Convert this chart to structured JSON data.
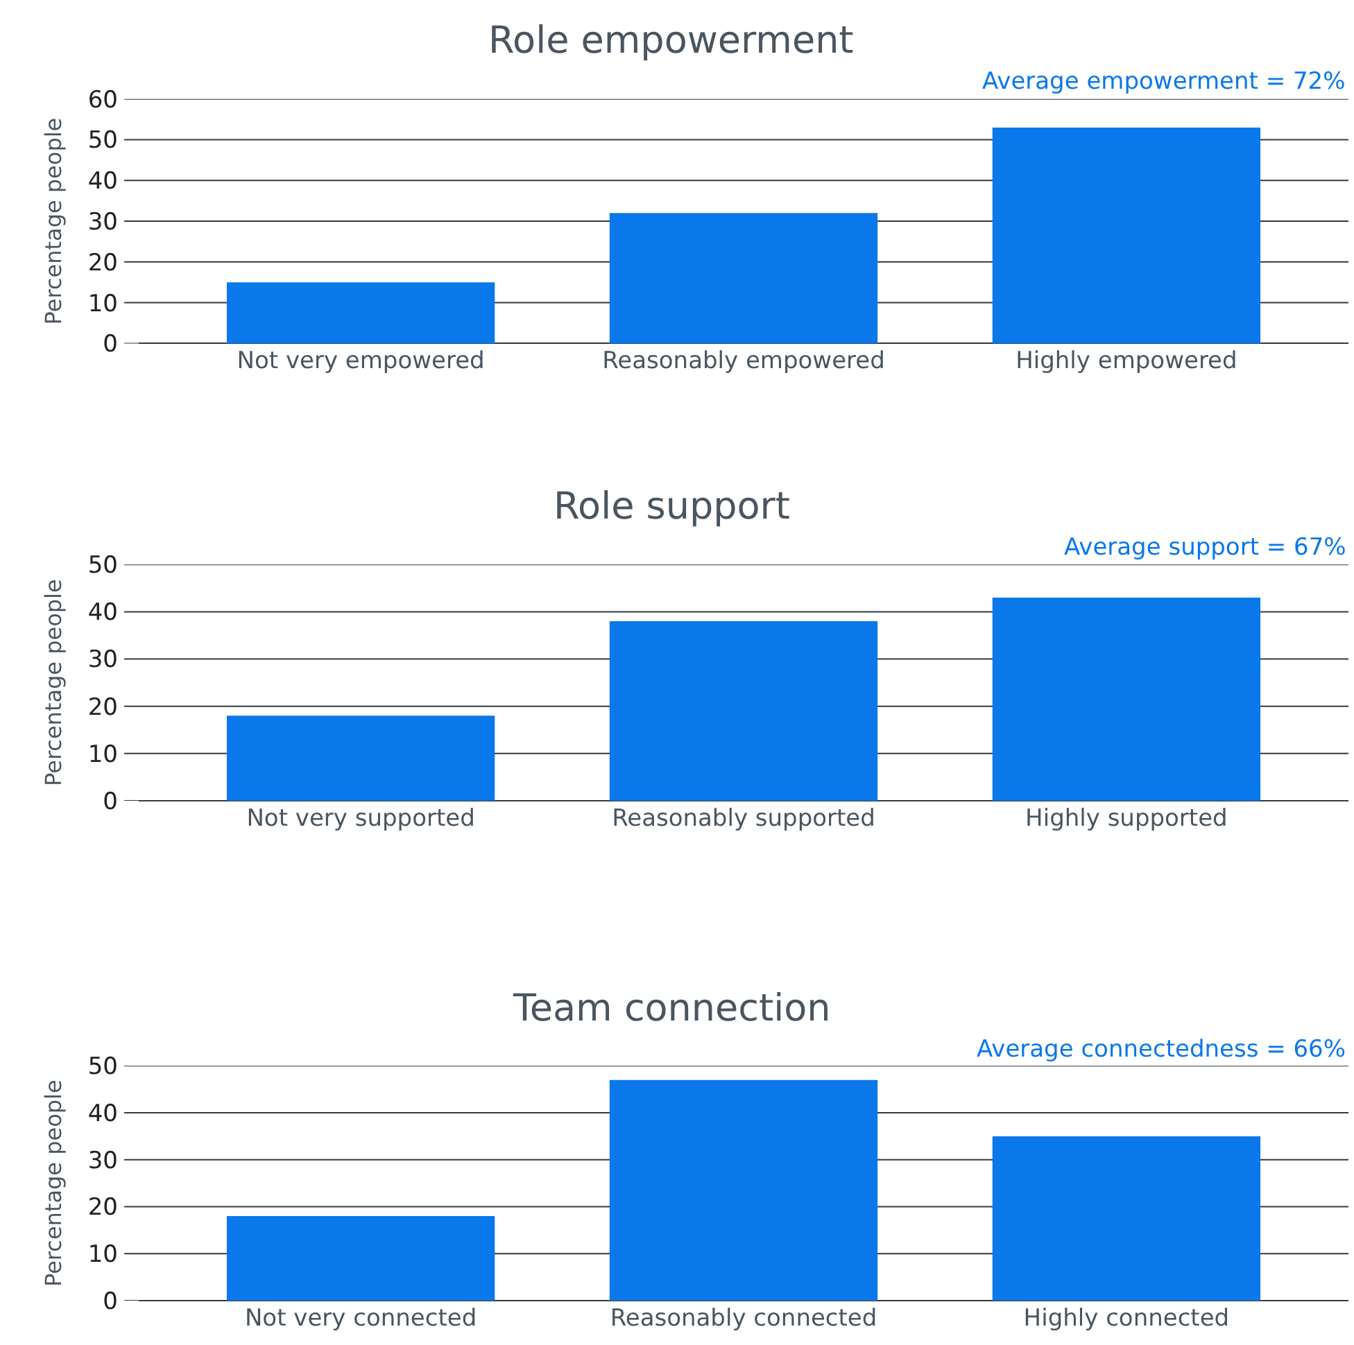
{
  "chart_data": [
    {
      "type": "bar",
      "title": "Role empowerment",
      "ylabel": "Percentage people",
      "categories": [
        "Not very empowered",
        "Reasonably empowered",
        "Highly empowered"
      ],
      "values": [
        15,
        32,
        53
      ],
      "color": "#0a78ea",
      "ylim": [
        0,
        60
      ],
      "yticks": [
        0,
        10,
        20,
        30,
        40,
        50,
        60
      ],
      "grid": "y",
      "annotations": [
        "Average empowerment = 72%"
      ]
    },
    {
      "type": "bar",
      "title": "Role support",
      "ylabel": "Percentage people",
      "categories": [
        "Not very supported",
        "Reasonably supported",
        "Highly supported"
      ],
      "values": [
        18,
        38,
        43
      ],
      "color": "#0a78ea",
      "ylim": [
        0,
        50
      ],
      "yticks": [
        0,
        10,
        20,
        30,
        40,
        50
      ],
      "grid": "y",
      "annotations": [
        "Average support = 67%"
      ]
    },
    {
      "type": "bar",
      "title": "Team connection",
      "ylabel": "Percentage people",
      "categories": [
        "Not very connected",
        "Reasonably connected",
        "Highly connected"
      ],
      "values": [
        18,
        47,
        35
      ],
      "color": "#0a78ea",
      "ylim": [
        0,
        50
      ],
      "yticks": [
        0,
        10,
        20,
        30,
        40,
        50
      ],
      "grid": "y",
      "annotations": [
        "Average connectedness = 66%"
      ]
    }
  ]
}
